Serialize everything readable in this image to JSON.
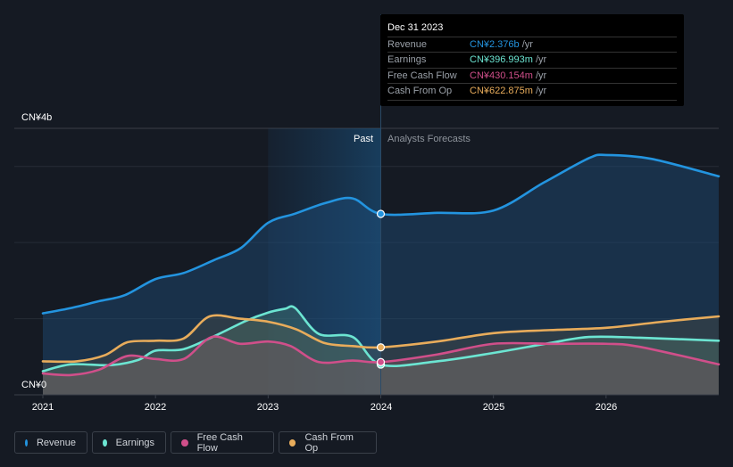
{
  "tooltip": {
    "date": "Dec 31 2023",
    "rows": [
      {
        "label": "Revenue",
        "value": "CN¥2.376b",
        "unit": " /yr",
        "color": "#2394df"
      },
      {
        "label": "Earnings",
        "value": "CN¥396.993m",
        "unit": " /yr",
        "color": "#6ce5d2"
      },
      {
        "label": "Free Cash Flow",
        "value": "CN¥430.154m",
        "unit": " /yr",
        "color": "#d04f8a"
      },
      {
        "label": "Cash From Op",
        "value": "CN¥622.875m",
        "unit": " /yr",
        "color": "#e8ac5b"
      }
    ]
  },
  "regions": {
    "past": "Past",
    "forecast": "Analysts Forecasts"
  },
  "legend": [
    {
      "label": "Revenue",
      "color": "#2394df"
    },
    {
      "label": "Earnings",
      "color": "#6ce5d2"
    },
    {
      "label": "Free Cash Flow",
      "color": "#d04f8a"
    },
    {
      "label": "Cash From Op",
      "color": "#e8ac5b"
    }
  ],
  "chart_data": {
    "type": "line",
    "title": "",
    "xlabel": "",
    "ylabel": "",
    "y_tick_labels": [
      "CN¥0",
      "CN¥4b"
    ],
    "x_tick_labels": [
      "2021",
      "2022",
      "2023",
      "2024",
      "2025",
      "2026"
    ],
    "xlim": [
      2021.0,
      2027.0
    ],
    "ylim": [
      0,
      3.5
    ],
    "unit": "CN¥ billions",
    "grid": true,
    "legend_position": "bottom-left",
    "divider_x": 2024.0,
    "highlight_x": 2024.0,
    "series": [
      {
        "name": "Revenue",
        "color": "#2394df",
        "x": [
          2021.0,
          2021.25,
          2021.5,
          2021.73,
          2022.0,
          2022.25,
          2022.52,
          2022.76,
          2023.0,
          2023.24,
          2023.51,
          2023.75,
          2024.0,
          2024.5,
          2025.0,
          2025.45,
          2025.85,
          2026.0,
          2026.4,
          2027.0
        ],
        "y": [
          1.07,
          1.14,
          1.23,
          1.31,
          1.52,
          1.6,
          1.77,
          1.93,
          2.26,
          2.38,
          2.52,
          2.58,
          2.376,
          2.39,
          2.42,
          2.79,
          3.11,
          3.15,
          3.1,
          2.87
        ]
      },
      {
        "name": "Earnings",
        "color": "#6ce5d2",
        "x": [
          2021.0,
          2021.25,
          2021.6,
          2021.85,
          2022.0,
          2022.25,
          2022.55,
          2022.8,
          2023.0,
          2023.15,
          2023.24,
          2023.45,
          2023.75,
          2024.0,
          2024.5,
          2025.0,
          2025.5,
          2025.85,
          2026.3,
          2027.0
        ],
        "y": [
          0.31,
          0.4,
          0.39,
          0.46,
          0.58,
          0.6,
          0.79,
          0.97,
          1.08,
          1.13,
          1.14,
          0.8,
          0.76,
          0.397,
          0.44,
          0.55,
          0.68,
          0.76,
          0.75,
          0.71
        ]
      },
      {
        "name": "Free Cash Flow",
        "color": "#d04f8a",
        "x": [
          2021.0,
          2021.25,
          2021.5,
          2021.75,
          2022.0,
          2022.25,
          2022.5,
          2022.75,
          2023.0,
          2023.2,
          2023.45,
          2023.75,
          2024.0,
          2024.5,
          2025.0,
          2025.5,
          2026.0,
          2026.3,
          2027.0
        ],
        "y": [
          0.28,
          0.26,
          0.33,
          0.51,
          0.47,
          0.47,
          0.76,
          0.67,
          0.7,
          0.64,
          0.43,
          0.45,
          0.43,
          0.53,
          0.67,
          0.67,
          0.67,
          0.63,
          0.4
        ]
      },
      {
        "name": "Cash From Op",
        "color": "#e8ac5b",
        "x": [
          2021.0,
          2021.3,
          2021.55,
          2021.75,
          2022.0,
          2022.25,
          2022.48,
          2022.75,
          2023.0,
          2023.25,
          2023.5,
          2023.75,
          2024.0,
          2024.5,
          2025.0,
          2025.5,
          2026.0,
          2026.5,
          2027.0
        ],
        "y": [
          0.44,
          0.44,
          0.52,
          0.69,
          0.71,
          0.74,
          1.03,
          1.0,
          0.96,
          0.86,
          0.68,
          0.64,
          0.623,
          0.7,
          0.81,
          0.85,
          0.88,
          0.96,
          1.03
        ]
      }
    ]
  }
}
